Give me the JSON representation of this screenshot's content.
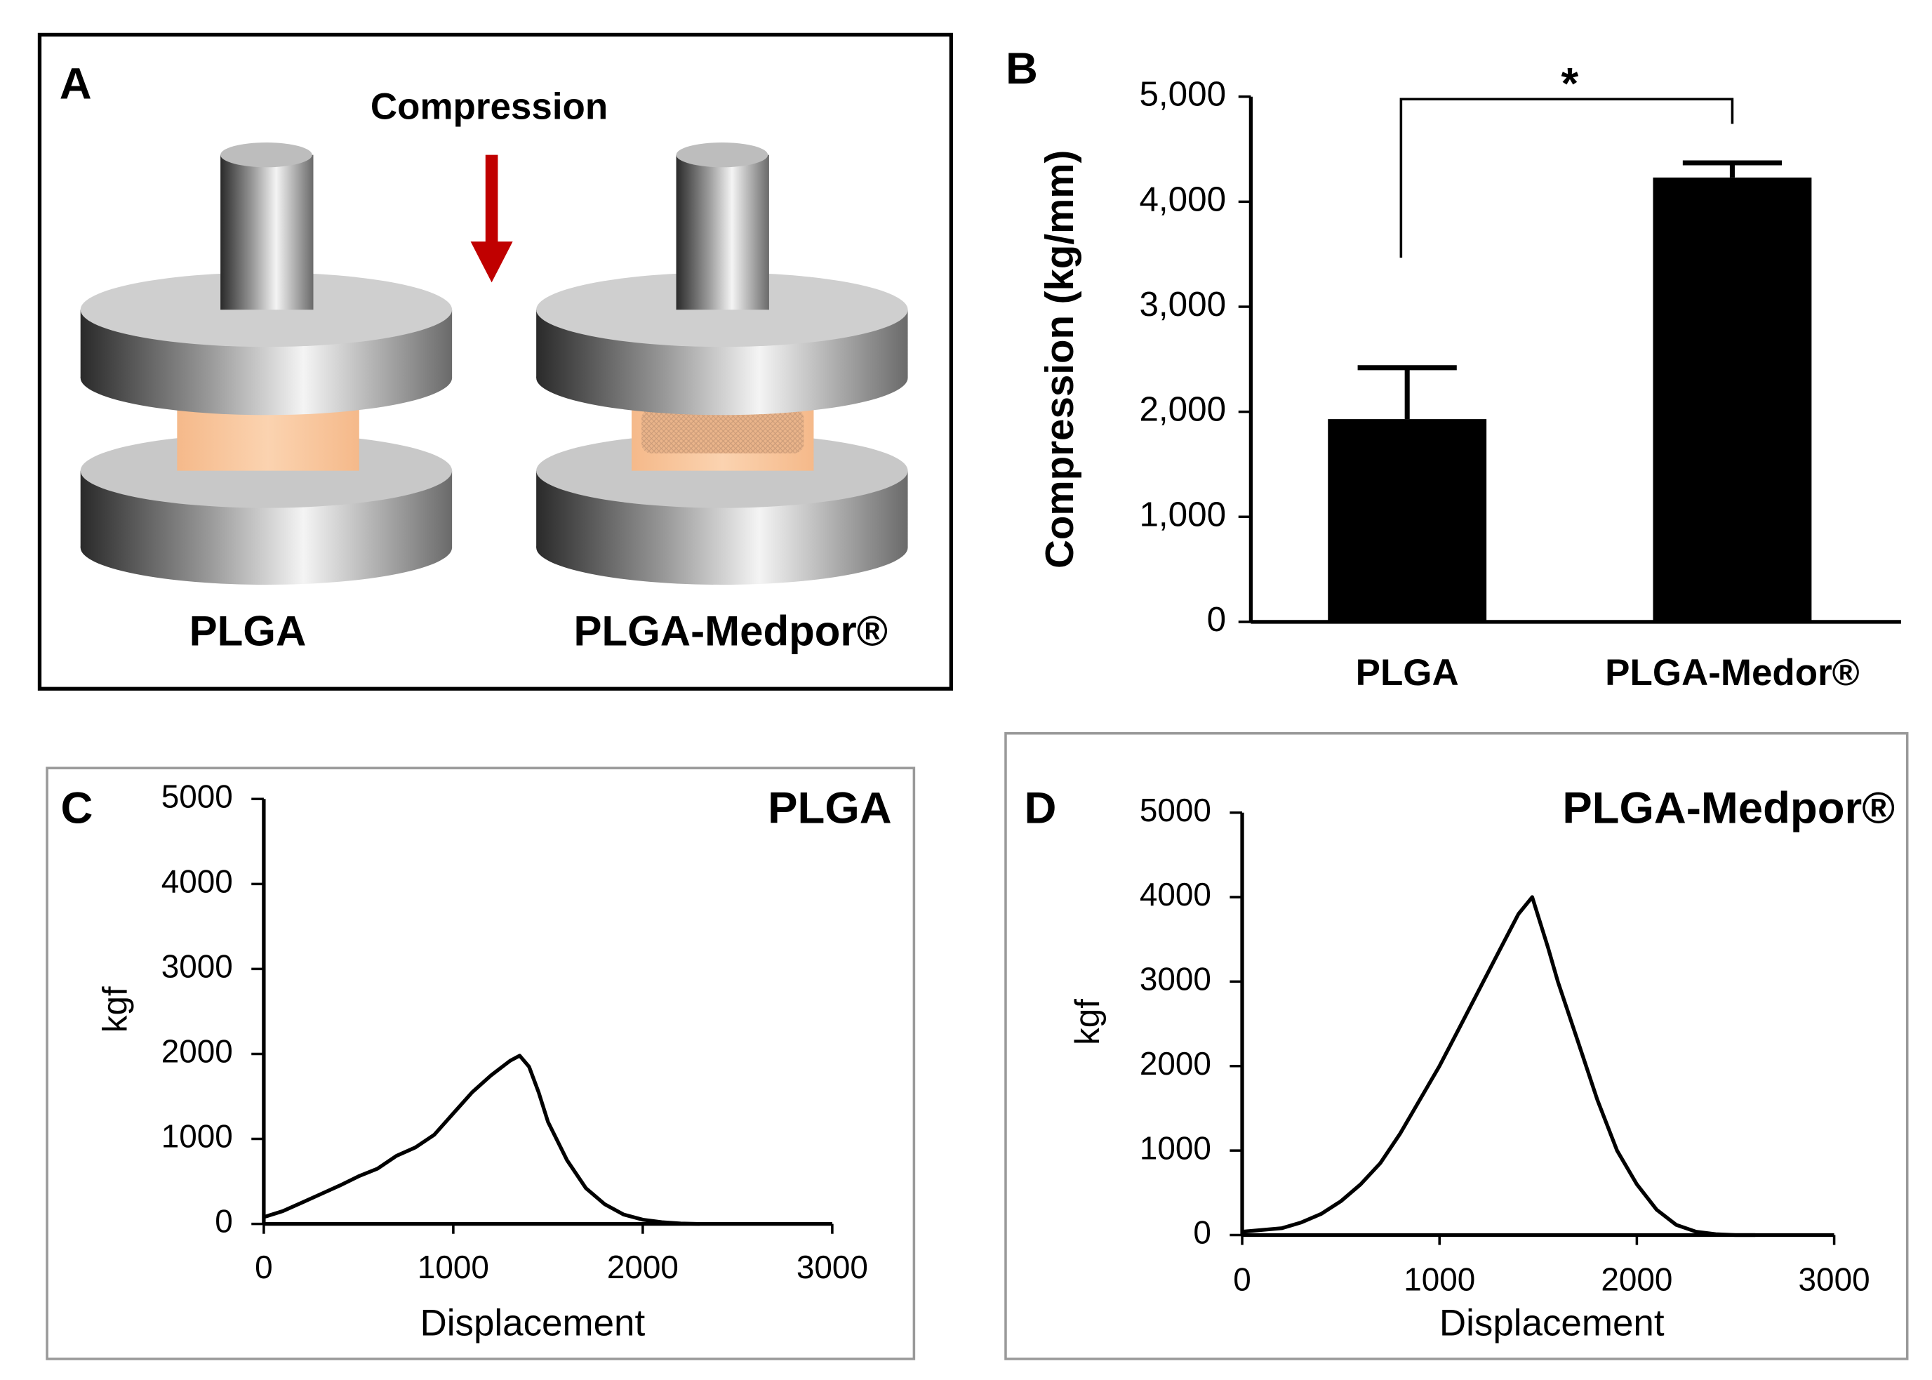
{
  "diagram": {
    "label": "A",
    "arrow_label": "Compression",
    "left_label": "PLGA",
    "right_label": "PLGA-Medpor®"
  },
  "chart_data": [
    {
      "type": "bar",
      "panel_label": "B",
      "y_label": "Compression (kg/mm)",
      "annotation": "*",
      "categories": [
        "PLGA",
        "PLGA-Medor®"
      ],
      "values": [
        1930,
        4230
      ],
      "errors": [
        490,
        140
      ],
      "color": "#000000",
      "ylim": [
        0,
        5000
      ],
      "yticks": [
        0,
        {
          "value": 1000,
          "label": "1,000"
        },
        {
          "value": 2000,
          "label": "2,000"
        },
        {
          "value": 3000,
          "label": "3,000"
        },
        {
          "value": 4000,
          "label": "4,000"
        },
        {
          "value": 5000,
          "label": "5,000"
        }
      ]
    },
    {
      "type": "line",
      "panel_label": "C",
      "title": "PLGA",
      "x_label": "Displacement",
      "y_label": "kgf",
      "color": "#000000",
      "x": [
        0,
        100,
        200,
        300,
        400,
        500,
        600,
        700,
        800,
        900,
        1000,
        1100,
        1200,
        1300,
        1350,
        1400,
        1450,
        1500,
        1600,
        1700,
        1800,
        1900,
        2000,
        2100,
        2200,
        2300
      ],
      "values": [
        80,
        150,
        250,
        350,
        450,
        560,
        650,
        800,
        900,
        1050,
        1300,
        1550,
        1750,
        1920,
        1980,
        1850,
        1550,
        1200,
        750,
        420,
        230,
        110,
        50,
        20,
        5,
        0
      ],
      "xlim": [
        0,
        3000
      ],
      "xticks": [
        0,
        1000,
        2000,
        3000
      ],
      "ylim": [
        0,
        5000
      ],
      "yticks": [
        0,
        1000,
        2000,
        3000,
        4000,
        5000
      ]
    },
    {
      "type": "line",
      "panel_label": "D",
      "title": "PLGA-Medpor®",
      "x_label": "Displacement",
      "y_label": "kgf",
      "color": "#000000",
      "x": [
        0,
        100,
        200,
        300,
        400,
        500,
        600,
        700,
        800,
        900,
        1000,
        1100,
        1200,
        1300,
        1400,
        1470,
        1550,
        1600,
        1700,
        1800,
        1900,
        2000,
        2100,
        2200,
        2300,
        2400,
        2500,
        2600
      ],
      "values": [
        40,
        60,
        80,
        150,
        250,
        400,
        600,
        850,
        1200,
        1600,
        2000,
        2450,
        2900,
        3350,
        3800,
        4000,
        3400,
        3000,
        2300,
        1600,
        1000,
        600,
        300,
        120,
        40,
        10,
        0,
        0
      ],
      "xlim": [
        0,
        3000
      ],
      "xticks": [
        0,
        1000,
        2000,
        3000
      ],
      "ylim": [
        0,
        5000
      ],
      "yticks": [
        0,
        1000,
        2000,
        3000,
        4000,
        5000
      ]
    }
  ]
}
